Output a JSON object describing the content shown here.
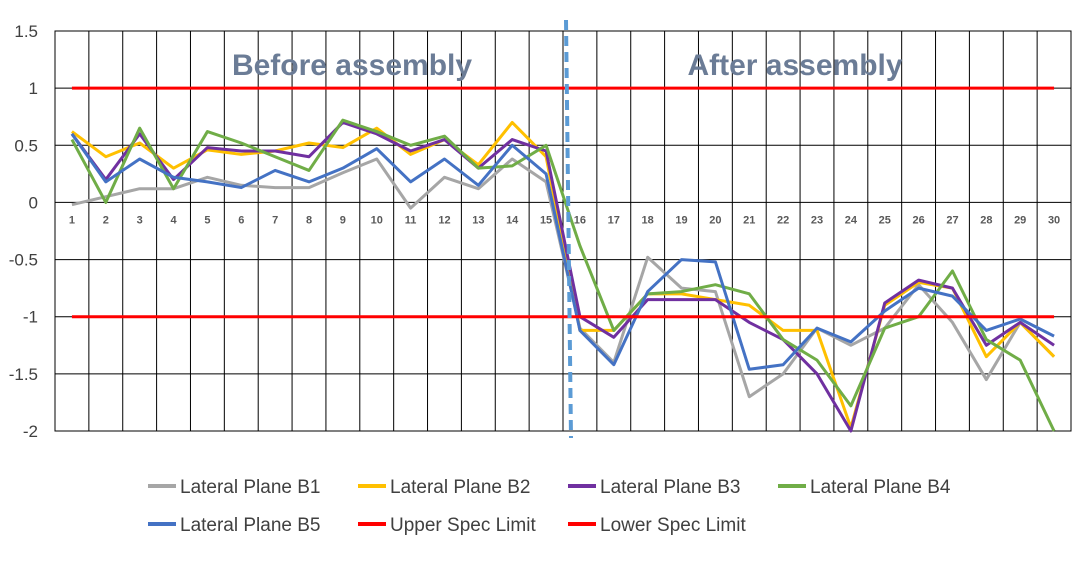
{
  "chart_data": {
    "type": "line",
    "x": [
      1,
      2,
      3,
      4,
      5,
      6,
      7,
      8,
      9,
      10,
      11,
      12,
      13,
      14,
      15,
      16,
      17,
      18,
      19,
      20,
      21,
      22,
      23,
      24,
      25,
      26,
      27,
      28,
      29,
      30
    ],
    "ylim": [
      -2,
      1.5
    ],
    "yticks": [
      "1.5",
      "1",
      "0.5",
      "0",
      "-0.5",
      "-1",
      "-1.5",
      "-2"
    ],
    "grid": true,
    "legend_position": "bottom",
    "annotations": {
      "before": "Before assembly",
      "after": "After assembly"
    },
    "series": [
      {
        "name": "Lateral Plane B1",
        "color": "#a6a6a6",
        "values": [
          -0.02,
          0.05,
          0.12,
          0.12,
          0.22,
          0.15,
          0.13,
          0.13,
          0.26,
          0.38,
          -0.05,
          0.22,
          0.12,
          0.38,
          0.18,
          -1.1,
          -1.4,
          -0.48,
          -0.75,
          -0.78,
          -1.7,
          -1.5,
          -1.1,
          -1.25,
          -1.1,
          -0.72,
          -1.05,
          -1.55,
          -1.05,
          -1.35
        ]
      },
      {
        "name": "Lateral Plane B2",
        "color": "#ffc000",
        "values": [
          0.62,
          0.4,
          0.52,
          0.3,
          0.46,
          0.42,
          0.45,
          0.52,
          0.48,
          0.65,
          0.42,
          0.55,
          0.33,
          0.7,
          0.4,
          -1.12,
          -1.12,
          -0.8,
          -0.8,
          -0.85,
          -0.9,
          -1.12,
          -1.12,
          -1.97,
          -0.9,
          -0.7,
          -0.75,
          -1.35,
          -1.05,
          -1.35
        ]
      },
      {
        "name": "Lateral Plane B3",
        "color": "#7030a0",
        "values": [
          0.6,
          0.2,
          0.6,
          0.2,
          0.48,
          0.45,
          0.45,
          0.4,
          0.7,
          0.6,
          0.45,
          0.55,
          0.3,
          0.55,
          0.45,
          -1.0,
          -1.18,
          -0.85,
          -0.85,
          -0.85,
          -1.05,
          -1.2,
          -1.5,
          -2.0,
          -0.88,
          -0.68,
          -0.75,
          -1.25,
          -1.05,
          -1.25
        ]
      },
      {
        "name": "Lateral Plane B4",
        "color": "#70ad47",
        "values": [
          0.55,
          0.0,
          0.65,
          0.12,
          0.62,
          0.52,
          0.4,
          0.28,
          0.72,
          0.62,
          0.5,
          0.58,
          0.3,
          0.32,
          0.5,
          -0.38,
          -1.12,
          -0.8,
          -0.78,
          -0.72,
          -0.8,
          -1.2,
          -1.38,
          -1.78,
          -1.1,
          -1.0,
          -0.6,
          -1.2,
          -1.38,
          -2.0
        ]
      },
      {
        "name": "Lateral Plane B5",
        "color": "#4472c4",
        "values": [
          0.6,
          0.18,
          0.38,
          0.22,
          0.18,
          0.13,
          0.28,
          0.18,
          0.3,
          0.47,
          0.18,
          0.38,
          0.15,
          0.5,
          0.25,
          -1.12,
          -1.42,
          -0.78,
          -0.5,
          -0.52,
          -1.46,
          -1.42,
          -1.1,
          -1.22,
          -0.95,
          -0.75,
          -0.82,
          -1.12,
          -1.02,
          -1.17
        ]
      },
      {
        "name": "Upper Spec Limit",
        "color": "#ff0000",
        "values": [
          1,
          1,
          1,
          1,
          1,
          1,
          1,
          1,
          1,
          1,
          1,
          1,
          1,
          1,
          1,
          1,
          1,
          1,
          1,
          1,
          1,
          1,
          1,
          1,
          1,
          1,
          1,
          1,
          1,
          1
        ]
      },
      {
        "name": "Lower Spec Limit",
        "color": "#ff0000",
        "values": [
          -1,
          -1,
          -1,
          -1,
          -1,
          -1,
          -1,
          -1,
          -1,
          -1,
          -1,
          -1,
          -1,
          -1,
          -1,
          -1,
          -1,
          -1,
          -1,
          -1,
          -1,
          -1,
          -1,
          -1,
          -1,
          -1,
          -1,
          -1,
          -1,
          -1
        ]
      }
    ],
    "divider_after_x": 15.5
  }
}
